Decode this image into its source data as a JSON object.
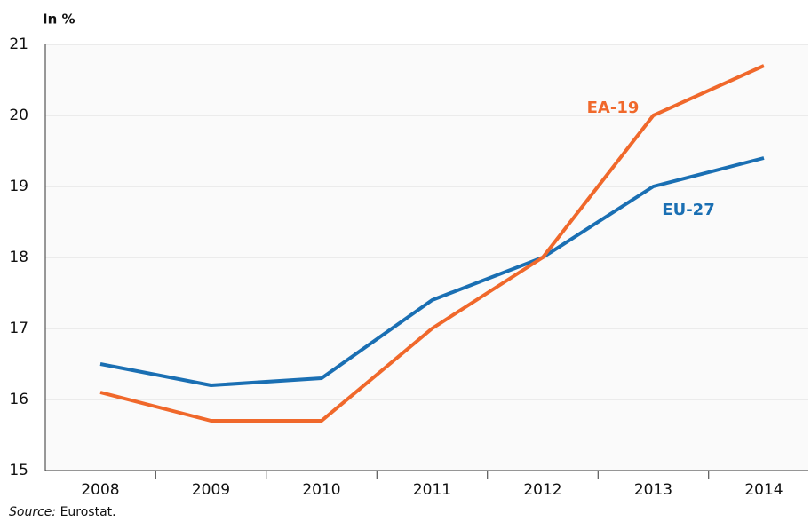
{
  "chart_data": {
    "type": "line",
    "y_label": "In %",
    "categories": [
      "2008",
      "2009",
      "2010",
      "2011",
      "2012",
      "2013",
      "2014"
    ],
    "series": [
      {
        "name": "EU-27",
        "color": "#1a6fb3",
        "values": [
          16.5,
          16.2,
          16.3,
          17.4,
          18.0,
          19.0,
          19.4
        ]
      },
      {
        "name": "EA-19",
        "color": "#f0682b",
        "values": [
          16.1,
          15.7,
          15.7,
          17.0,
          18.0,
          20.0,
          20.7
        ]
      }
    ],
    "ylim": [
      15,
      21
    ],
    "yticks": [
      15,
      16,
      17,
      18,
      19,
      20,
      21
    ],
    "grid": true,
    "source_label": "Source:",
    "source": "Eurostat."
  }
}
